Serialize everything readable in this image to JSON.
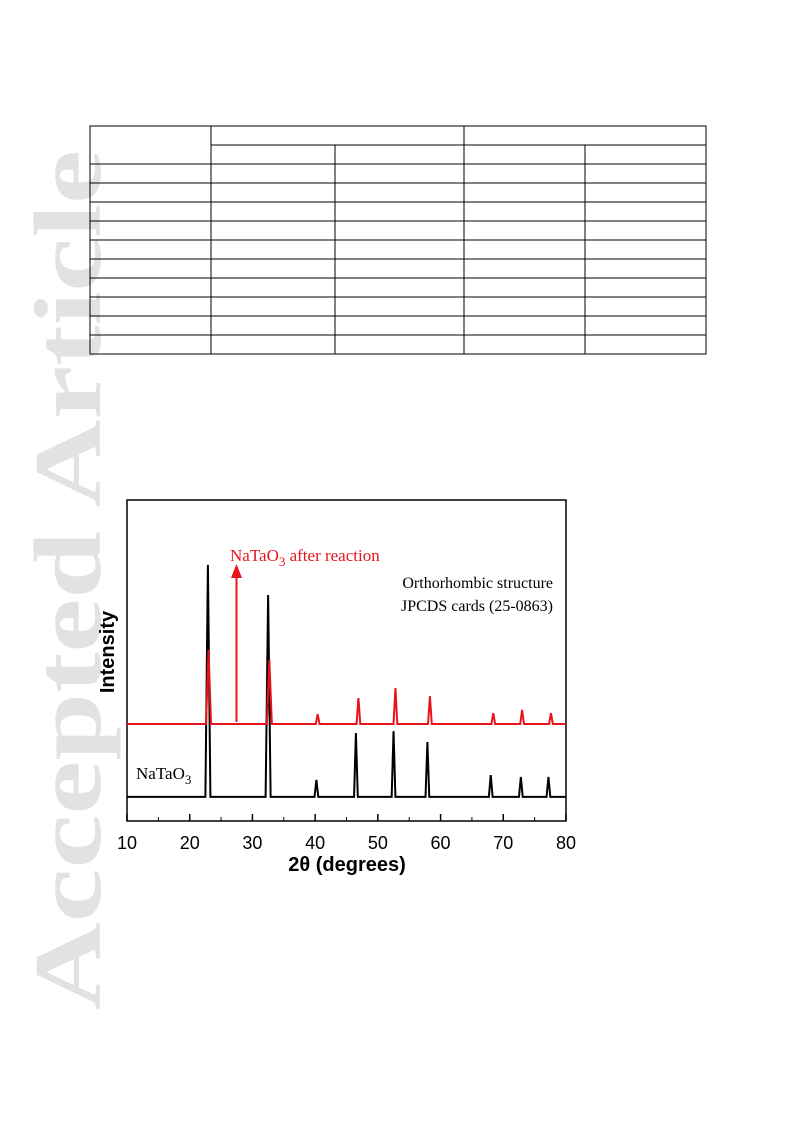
{
  "watermark": "Accepted Article",
  "chart_data": {
    "type": "line",
    "xlabel": "2θ (degrees)",
    "ylabel": "Intensity",
    "xlim": [
      10,
      80
    ],
    "xticks": [
      10,
      20,
      30,
      40,
      50,
      60,
      70,
      80
    ],
    "xminorticks": [
      15,
      25,
      35,
      45,
      55,
      65,
      75
    ],
    "ylim": [
      0,
      100
    ],
    "annotations": {
      "after": [
        "NaTaO",
        "3",
        " after reaction"
      ],
      "fresh": [
        "NaTaO",
        "3"
      ],
      "reference": [
        "Orthorhombic structure",
        "JPCDS cards (25-0863)"
      ]
    },
    "series": [
      {
        "color": "#000000",
        "x": [
          10,
          22.5,
          22.9,
          23.3,
          32.1,
          32.5,
          32.9,
          39.9,
          40.2,
          40.5,
          46.2,
          46.5,
          46.8,
          52.2,
          52.5,
          52.8,
          57.6,
          57.9,
          58.2,
          67.7,
          68,
          68.3,
          72.5,
          72.8,
          73.1,
          76.9,
          77.2,
          77.5,
          80
        ],
        "values": [
          7.5,
          7.5,
          79.8,
          7.5,
          7.5,
          70.4,
          7.5,
          7.5,
          12.8,
          7.5,
          7.5,
          27.4,
          7.5,
          7.5,
          28,
          7.5,
          7.5,
          24.6,
          7.5,
          7.5,
          14.3,
          7.5,
          7.5,
          13.7,
          7.5,
          7.5,
          13.7,
          7.5,
          7.5
        ]
      },
      {
        "color": "#e8141b",
        "x": [
          10,
          22.6,
          23,
          23.4,
          32.3,
          32.7,
          33.1,
          40.1,
          40.4,
          40.7,
          46.6,
          46.9,
          47.2,
          52.5,
          52.8,
          53.1,
          58,
          58.3,
          58.6,
          68.1,
          68.4,
          68.7,
          72.7,
          73,
          73.3,
          77.3,
          77.6,
          77.9,
          80
        ],
        "values": [
          30.2,
          30.2,
          53.3,
          30.2,
          30.2,
          50.2,
          30.2,
          30.2,
          33.3,
          30.2,
          30.2,
          38.3,
          30.2,
          30.2,
          41.4,
          30.2,
          30.2,
          38.9,
          30.2,
          30.2,
          33.6,
          30.2,
          30.2,
          34.6,
          30.2,
          30.2,
          33.6,
          30.2,
          30.2
        ]
      }
    ]
  }
}
